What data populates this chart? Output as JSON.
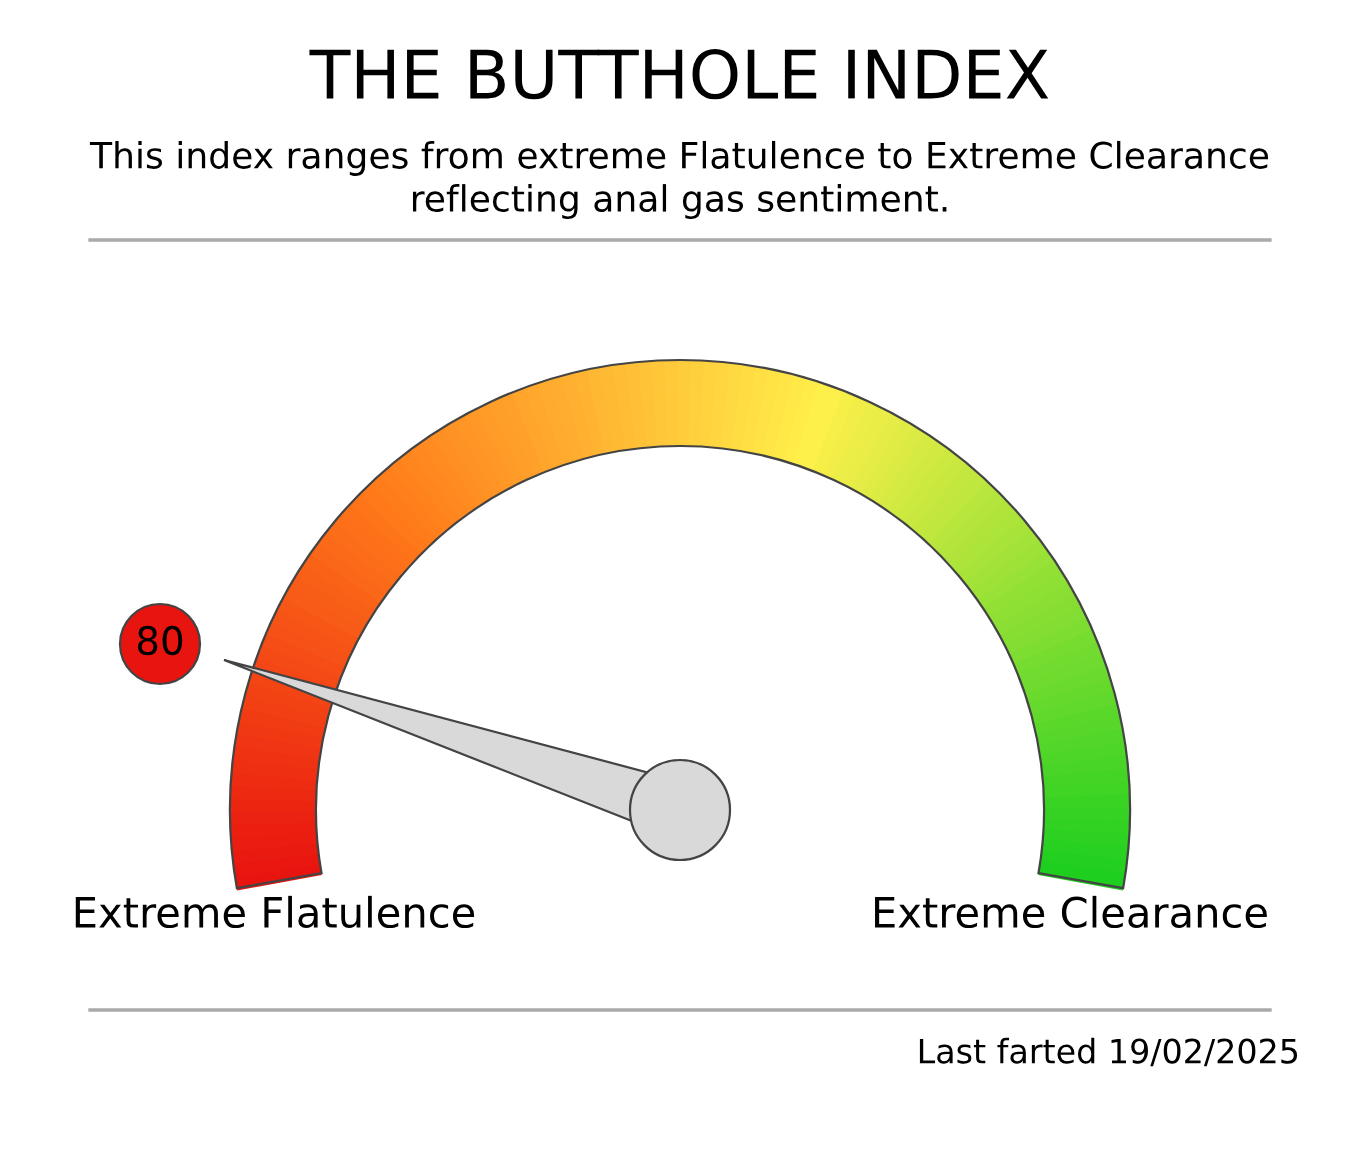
{
  "chart_data": {
    "type": "other",
    "title": "THE BUTTHOLE INDEX",
    "subtitle": "This index ranges from extreme Flatulence to Extreme Clearance reflecting anal gas sentiment.",
    "values": [
      80
    ],
    "colors": [
      "#e8140f"
    ],
    "data_labels": true,
    "annotations": [
      "Extreme Flatulence",
      "Extreme Clearance",
      "Last farted 19/02/2025"
    ]
  }
}
